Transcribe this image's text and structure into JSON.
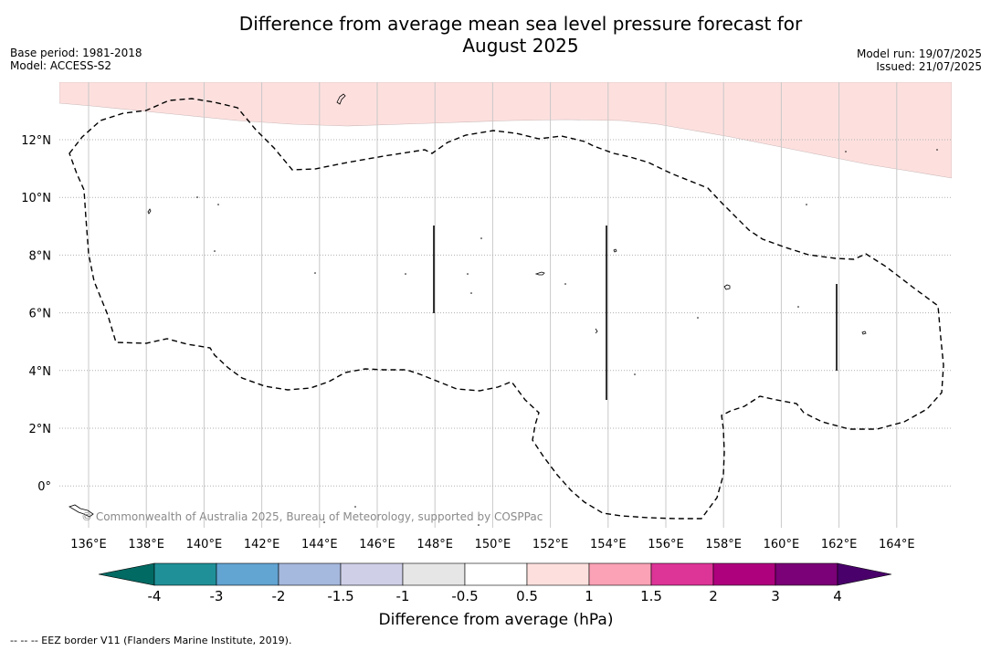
{
  "title": "Difference from average mean sea level pressure forecast for August 2025",
  "title_line1": "Difference from average mean sea level pressure forecast for",
  "title_line2": "August 2025",
  "base_period": "Base period: 1981-2018",
  "model": "Model: ACCESS-S2",
  "model_run": "Model run: 19/07/2025",
  "issued": "Issued: 21/07/2025",
  "copyright": "© Commonwealth of Australia 2025, Bureau of Meteorology, supported by COSPPac",
  "footer_note": "--  --  -- EEZ border V11 (Flanders Marine Institute, 2019).",
  "map": {
    "lat_labels": [
      "12°N",
      "10°N",
      "8°N",
      "6°N",
      "4°N",
      "2°N",
      "0°"
    ],
    "lon_labels": [
      "136°E",
      "138°E",
      "140°E",
      "142°E",
      "144°E",
      "146°E",
      "148°E",
      "150°E",
      "152°E",
      "154°E",
      "156°E",
      "158°E",
      "160°E",
      "162°E",
      "164°E"
    ],
    "anomaly_region_color": "#fde0de",
    "anomaly_region_label": "0.5"
  },
  "colorbar": {
    "label": "Difference from average (hPa)",
    "ticks": [
      "-4",
      "-3",
      "-2",
      "-1.5",
      "-1",
      "-0.5",
      "0.5",
      "1",
      "1.5",
      "2",
      "3",
      "4"
    ],
    "colors": [
      "#006a63",
      "#1f9098",
      "#62a4d2",
      "#a5b8dd",
      "#cfd0e8",
      "#e6e6e6",
      "#ffffff",
      "#fde0de",
      "#fba2b6",
      "#dd3497",
      "#ae017e",
      "#7a0177",
      "#49006a"
    ]
  }
}
